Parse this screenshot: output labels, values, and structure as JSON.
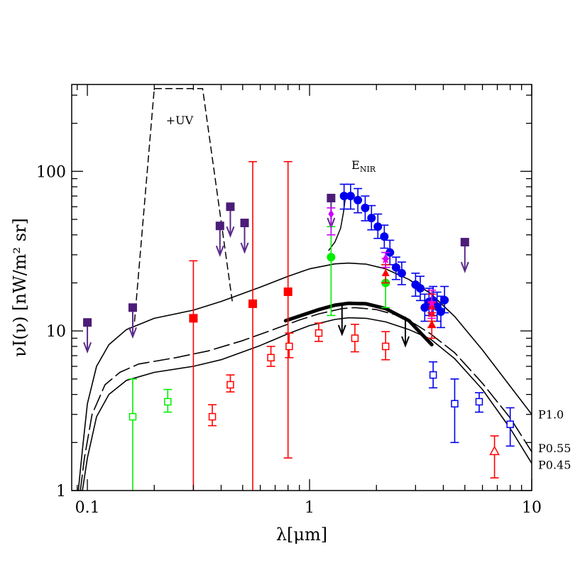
{
  "chart_data": {
    "type": "scatter",
    "xlabel": "λ[μm]",
    "ylabel": "νI(ν)  [nW/m² sr]",
    "xscale": "log",
    "yscale": "log",
    "xlim": [
      0.085,
      10
    ],
    "ylim": [
      1,
      350
    ],
    "x_tick_labels": [
      {
        "value": 0.1,
        "label": "0.1"
      },
      {
        "value": 1,
        "label": "1"
      },
      {
        "value": 10,
        "label": "10"
      }
    ],
    "y_tick_labels": [
      {
        "value": 1,
        "label": "1"
      },
      {
        "value": 10,
        "label": "10"
      },
      {
        "value": 100,
        "label": "100"
      }
    ],
    "annotations": [
      {
        "text": "+UV",
        "x": 0.26,
        "y": 210
      },
      {
        "text": "E",
        "sub": "NIR",
        "x": 1.75,
        "y": 110
      },
      {
        "text": "P1.0",
        "x": 8.7,
        "y": 3.0
      },
      {
        "text": "P0.55",
        "x": 8.7,
        "y": 1.85
      },
      {
        "text": "P0.45",
        "x": 8.7,
        "y": 1.45
      }
    ],
    "curves": [
      {
        "id": "P1.0",
        "style": "solid",
        "width": 1.6,
        "color": "#000000",
        "points": [
          [
            0.091,
            1
          ],
          [
            0.095,
            1.8
          ],
          [
            0.1,
            3.5
          ],
          [
            0.11,
            6
          ],
          [
            0.125,
            8.2
          ],
          [
            0.15,
            10.2
          ],
          [
            0.2,
            12
          ],
          [
            0.3,
            13.5
          ],
          [
            0.4,
            15.3
          ],
          [
            0.6,
            18.8
          ],
          [
            0.8,
            22
          ],
          [
            1.0,
            24.5
          ],
          [
            1.3,
            26.3
          ],
          [
            1.5,
            26.6
          ],
          [
            1.8,
            26.2
          ],
          [
            2.2,
            24.5
          ],
          [
            2.8,
            21
          ],
          [
            3.5,
            17.2
          ],
          [
            4.5,
            12.3
          ],
          [
            6,
            7.6
          ],
          [
            8,
            4.5
          ],
          [
            10,
            3.0
          ]
        ]
      },
      {
        "id": "P0.55",
        "style": "longdash",
        "width": 1.6,
        "color": "#000000",
        "points": [
          [
            0.093,
            1
          ],
          [
            0.097,
            1.6
          ],
          [
            0.105,
            3
          ],
          [
            0.12,
            4.6
          ],
          [
            0.14,
            5.5
          ],
          [
            0.17,
            6.2
          ],
          [
            0.25,
            6.8
          ],
          [
            0.35,
            7.5
          ],
          [
            0.5,
            8.7
          ],
          [
            0.7,
            10.3
          ],
          [
            0.9,
            11.7
          ],
          [
            1.1,
            12.8
          ],
          [
            1.4,
            13.8
          ],
          [
            1.6,
            14
          ],
          [
            2.0,
            13.6
          ],
          [
            2.5,
            12.5
          ],
          [
            3.0,
            11
          ],
          [
            3.5,
            9.6
          ],
          [
            4.5,
            7.3
          ],
          [
            6,
            4.7
          ],
          [
            8,
            2.85
          ],
          [
            10,
            1.75
          ]
        ]
      },
      {
        "id": "P0.45",
        "style": "solid",
        "width": 1.6,
        "color": "#000000",
        "points": [
          [
            0.095,
            1
          ],
          [
            0.1,
            1.6
          ],
          [
            0.11,
            2.9
          ],
          [
            0.125,
            4.0
          ],
          [
            0.15,
            4.9
          ],
          [
            0.2,
            5.5
          ],
          [
            0.3,
            6.0
          ],
          [
            0.4,
            6.6
          ],
          [
            0.6,
            8.1
          ],
          [
            0.8,
            9.6
          ],
          [
            1.0,
            10.8
          ],
          [
            1.3,
            11.8
          ],
          [
            1.5,
            12.1
          ],
          [
            1.8,
            12
          ],
          [
            2.2,
            11.4
          ],
          [
            2.8,
            10.2
          ],
          [
            3.5,
            8.9
          ],
          [
            4.5,
            6.7
          ],
          [
            6,
            4.3
          ],
          [
            8,
            2.45
          ],
          [
            10,
            1.48
          ]
        ]
      },
      {
        "id": "thick",
        "style": "solid",
        "width": 5,
        "color": "#000000",
        "points": [
          [
            0.78,
            11.6
          ],
          [
            0.9,
            12.4
          ],
          [
            1.1,
            13.6
          ],
          [
            1.3,
            14.5
          ],
          [
            1.5,
            14.9
          ],
          [
            1.8,
            14.8
          ],
          [
            2.2,
            13.8
          ],
          [
            2.8,
            11.6
          ],
          [
            3.55,
            8.2
          ]
        ]
      },
      {
        "id": "UV",
        "style": "dashed",
        "width": 1.5,
        "color": "#000000",
        "points": [
          [
            0.163,
            11.5
          ],
          [
            0.2,
            330
          ],
          [
            0.33,
            330
          ],
          [
            0.45,
            15
          ]
        ]
      },
      {
        "id": "ENIR",
        "style": "solid",
        "width": 1.5,
        "color": "#000000",
        "points": [
          [
            1.22,
            32
          ],
          [
            1.3,
            36
          ],
          [
            1.38,
            44
          ],
          [
            1.42,
            55
          ],
          [
            1.45,
            68
          ],
          [
            1.5,
            70
          ]
        ]
      }
    ],
    "series": [
      {
        "marker": "filled-square",
        "color": "#4b1c78",
        "upper_limit": true,
        "points": [
          {
            "x": 0.1,
            "y": 11.3
          },
          {
            "x": 0.16,
            "y": 14
          },
          {
            "x": 0.395,
            "y": 45.5
          },
          {
            "x": 0.44,
            "y": 60
          },
          {
            "x": 0.51,
            "y": 47.5
          },
          {
            "x": 1.25,
            "y": 68
          },
          {
            "x": 5.0,
            "y": 36
          }
        ]
      },
      {
        "marker": "filled-square",
        "color": "#ff0000",
        "points": [
          {
            "x": 0.3,
            "y": 12,
            "lo": 1,
            "hi": 27.5
          },
          {
            "x": 0.555,
            "y": 14.8,
            "lo": 1,
            "hi": 115
          },
          {
            "x": 0.8,
            "y": 17.6,
            "lo": 1.6,
            "hi": 115
          }
        ]
      },
      {
        "marker": "open-square",
        "color": "#ff0000",
        "points": [
          {
            "x": 0.365,
            "y": 2.9,
            "lo": 2.55,
            "hi": 3.45
          },
          {
            "x": 0.44,
            "y": 4.6,
            "lo": 4.15,
            "hi": 5.3
          },
          {
            "x": 0.67,
            "y": 6.8,
            "lo": 6.0,
            "hi": 8.0
          },
          {
            "x": 0.81,
            "y": 8.0,
            "lo": 6.8,
            "hi": 9.7
          },
          {
            "x": 1.1,
            "y": 9.7,
            "lo": 8.6,
            "hi": 11.2
          },
          {
            "x": 1.6,
            "y": 9.0,
            "lo": 7.4,
            "hi": 11.0
          },
          {
            "x": 2.2,
            "y": 8.0,
            "lo": 6.6,
            "hi": 9.9
          }
        ]
      },
      {
        "marker": "open-square",
        "color": "#00ee00",
        "points": [
          {
            "x": 0.16,
            "y": 2.9,
            "lo": 1,
            "hi": 5.0
          },
          {
            "x": 0.23,
            "y": 3.6,
            "lo": 3.1,
            "hi": 4.3
          }
        ]
      },
      {
        "marker": "filled-circle",
        "color": "#00ee00",
        "points": [
          {
            "x": 1.25,
            "y": 29,
            "lo": 12.5,
            "hi": 45
          },
          {
            "x": 2.2,
            "y": 20,
            "lo": 14,
            "hi": 26
          }
        ]
      },
      {
        "marker": "filled-circle",
        "color": "#0000ee",
        "points": [
          {
            "x": 1.43,
            "y": 70,
            "lo": 58,
            "hi": 83
          },
          {
            "x": 1.53,
            "y": 70,
            "lo": 58,
            "hi": 83
          },
          {
            "x": 1.65,
            "y": 66,
            "lo": 55,
            "hi": 78
          },
          {
            "x": 1.78,
            "y": 59,
            "lo": 49,
            "hi": 70
          },
          {
            "x": 1.9,
            "y": 51,
            "lo": 43,
            "hi": 61
          },
          {
            "x": 2.03,
            "y": 45,
            "lo": 38,
            "hi": 54
          },
          {
            "x": 2.17,
            "y": 39,
            "lo": 33,
            "hi": 46
          },
          {
            "x": 2.3,
            "y": 31,
            "lo": 26,
            "hi": 37
          },
          {
            "x": 2.45,
            "y": 25,
            "lo": 21,
            "hi": 29
          },
          {
            "x": 2.6,
            "y": 23,
            "lo": 19.5,
            "hi": 27
          },
          {
            "x": 3.0,
            "y": 19.5,
            "lo": 16.5,
            "hi": 23
          },
          {
            "x": 3.15,
            "y": 18.5,
            "lo": 15.5,
            "hi": 22
          },
          {
            "x": 3.3,
            "y": 14,
            "lo": 11.5,
            "hi": 17
          },
          {
            "x": 3.45,
            "y": 15.2,
            "lo": 12.5,
            "hi": 18.5
          },
          {
            "x": 3.6,
            "y": 15.5,
            "lo": 12.5,
            "hi": 19
          },
          {
            "x": 3.75,
            "y": 14.2,
            "lo": 11.5,
            "hi": 17.5
          },
          {
            "x": 3.9,
            "y": 13.2,
            "lo": 10.5,
            "hi": 16.5
          },
          {
            "x": 4.05,
            "y": 15.6,
            "lo": 13,
            "hi": 19
          }
        ]
      },
      {
        "marker": "open-square",
        "color": "#0000ee",
        "points": [
          {
            "x": 3.6,
            "y": 5.3,
            "lo": 4.4,
            "hi": 6.4
          },
          {
            "x": 4.5,
            "y": 3.5,
            "lo": 2.0,
            "hi": 5.0
          },
          {
            "x": 5.8,
            "y": 3.6,
            "lo": 3.1,
            "hi": 4.1
          },
          {
            "x": 8.0,
            "y": 2.6,
            "lo": 1.9,
            "hi": 3.3
          }
        ]
      },
      {
        "marker": "filled-triangle",
        "color": "#ff0000",
        "points": [
          {
            "x": 2.2,
            "y": 23,
            "lo": 20,
            "hi": 26
          },
          {
            "x": 3.55,
            "y": 14.2,
            "lo": 11.5,
            "hi": 17
          },
          {
            "x": 3.55,
            "y": 12.8,
            "lo": 10.5,
            "hi": 15
          },
          {
            "x": 3.55,
            "y": 11.0,
            "lo": 9,
            "hi": 13
          }
        ]
      },
      {
        "marker": "open-triangle",
        "color": "#ff0000",
        "points": [
          {
            "x": 6.8,
            "y": 1.75,
            "lo": 1.2,
            "hi": 2.2
          }
        ]
      },
      {
        "marker": "star",
        "color": "#ff00cc",
        "points": [
          {
            "x": 2.2,
            "y": 28,
            "lo": 25,
            "hi": 31
          },
          {
            "x": 3.55,
            "y": 15,
            "lo": 12,
            "hi": 18
          }
        ]
      },
      {
        "marker": "filled-diamond",
        "color": "#cc00ff",
        "points": [
          {
            "x": 1.25,
            "y": 54,
            "lo": 40,
            "hi": 59
          },
          {
            "x": 2.2,
            "y": 28.5,
            "lo": 25,
            "hi": 31
          }
        ]
      },
      {
        "marker": "arrow-only",
        "color": "#000000",
        "upper_limit": true,
        "points": [
          {
            "x": 1.4,
            "y": 14.5
          },
          {
            "x": 2.7,
            "y": 12.3
          }
        ]
      }
    ]
  }
}
